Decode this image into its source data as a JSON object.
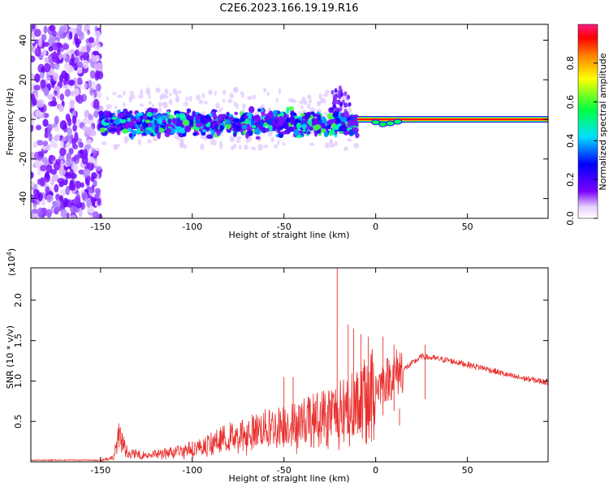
{
  "figure_title": "C2E6.2023.166.19.19.R16",
  "chart_data": [
    {
      "type": "heatmap",
      "title": "C2E6.2023.166.19.19.R16",
      "xlabel": "Height of straight line (km)",
      "ylabel": "Frequency (Hz)",
      "xlim": [
        -188,
        94
      ],
      "ylim": [
        -50,
        48
      ],
      "xticks": [
        -150,
        -100,
        -50,
        0,
        50
      ],
      "xtick_labels": [
        "-150",
        "-100",
        "-50",
        "0",
        "50"
      ],
      "yticks": [
        -40,
        -20,
        0,
        20,
        40
      ],
      "ytick_labels": [
        "-40",
        "-20",
        "0",
        "20",
        "40"
      ],
      "colorbar": {
        "label": "Normalized spectral amplitude",
        "range": [
          0,
          1
        ],
        "ticks": [
          0.0,
          0.2,
          0.4,
          0.6,
          0.8
        ],
        "tick_labels": [
          "0.0",
          "0.2",
          "0.4",
          "0.6",
          "0.8"
        ]
      },
      "regions": [
        {
          "name": "noise",
          "x": [
            -188,
            -150
          ],
          "freq_spread": [
            -50,
            48
          ],
          "amplitude": 0.1
        },
        {
          "name": "scatter",
          "x": [
            -150,
            -10
          ],
          "freq_spread": [
            -10,
            6
          ],
          "amplitude": 0.25
        },
        {
          "name": "carrier",
          "x": [
            -10,
            94
          ],
          "freq": 0,
          "amplitude": 1.0
        }
      ]
    },
    {
      "type": "line",
      "xlabel": "Height of straight line (km)",
      "ylabel": "SNR (10 * v/v)",
      "y_multiplier_label": "(x10",
      "y_multiplier_exp": "4",
      "y_multiplier_close": ")",
      "xlim": [
        -188,
        94
      ],
      "ylim": [
        0,
        2.4
      ],
      "xticks": [
        -150,
        -100,
        -50,
        0,
        50
      ],
      "xtick_labels": [
        "-150",
        "-100",
        "-50",
        "0",
        "50"
      ],
      "yticks": [
        0.5,
        1.0,
        1.5,
        2.0
      ],
      "ytick_labels": [
        "0.5",
        "1.0",
        "1.5",
        "2.0"
      ],
      "color": "#e8302e",
      "envelope": [
        {
          "x": -188,
          "y": 0.02
        },
        {
          "x": -150,
          "y": 0.02
        },
        {
          "x": -143,
          "y": 0.05
        },
        {
          "x": -140,
          "y": 0.3
        },
        {
          "x": -135,
          "y": 0.1
        },
        {
          "x": -125,
          "y": 0.08
        },
        {
          "x": -110,
          "y": 0.12
        },
        {
          "x": -95,
          "y": 0.18
        },
        {
          "x": -80,
          "y": 0.3
        },
        {
          "x": -60,
          "y": 0.4
        },
        {
          "x": -45,
          "y": 0.45
        },
        {
          "x": -30,
          "y": 0.55
        },
        {
          "x": -22,
          "y": 0.6
        },
        {
          "x": -10,
          "y": 0.7
        },
        {
          "x": 0,
          "y": 0.9
        },
        {
          "x": 10,
          "y": 1.05
        },
        {
          "x": 25,
          "y": 1.3
        },
        {
          "x": 40,
          "y": 1.25
        },
        {
          "x": 60,
          "y": 1.15
        },
        {
          "x": 75,
          "y": 1.05
        },
        {
          "x": 94,
          "y": 0.98
        }
      ],
      "spikes": [
        {
          "x": -21,
          "y": 2.4
        },
        {
          "x": -15,
          "y": 1.7
        },
        {
          "x": -12,
          "y": 1.65
        },
        {
          "x": -8,
          "y": 1.58
        },
        {
          "x": -4,
          "y": 1.55
        },
        {
          "x": 4,
          "y": 1.55
        },
        {
          "x": 10,
          "y": 1.45
        },
        {
          "x": 13,
          "y": 0.45
        },
        {
          "x": 27,
          "y": 1.45
        },
        {
          "x": -140,
          "y": 0.43
        },
        {
          "x": -50,
          "y": 1.05
        },
        {
          "x": -45,
          "y": 1.05
        }
      ]
    }
  ]
}
